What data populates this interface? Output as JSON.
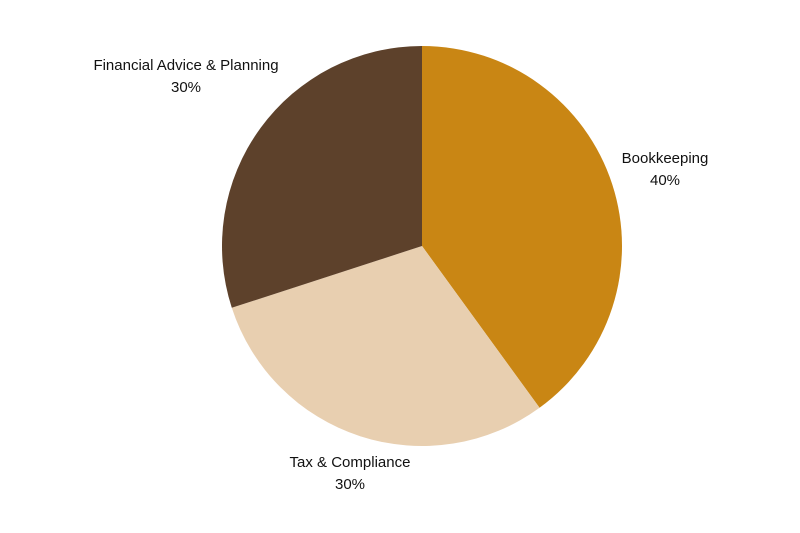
{
  "chart_data": {
    "type": "pie",
    "title": "",
    "start": "12 o'clock",
    "direction": "clockwise",
    "slices": [
      {
        "label": "Bookkeeping",
        "percent_label": "40%",
        "value": 40,
        "color": "#c98614"
      },
      {
        "label": "Tax & Compliance",
        "percent_label": "30%",
        "value": 30,
        "color": "#e8cfb0"
      },
      {
        "label": "Financial Advice & Planning",
        "percent_label": "30%",
        "value": 30,
        "color": "#5d412b"
      }
    ]
  }
}
